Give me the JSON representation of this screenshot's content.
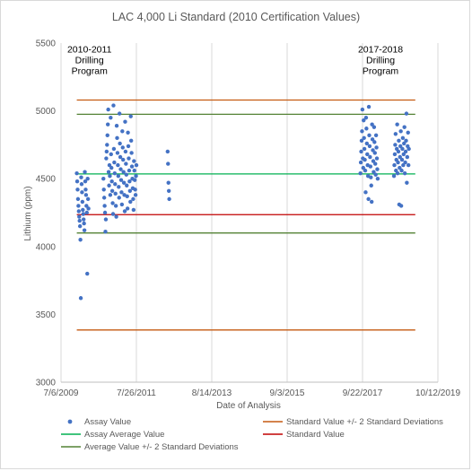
{
  "chart_data": {
    "type": "scatter",
    "title": "LAC 4,000 Li Standard (2010 Certification Values)",
    "xlabel": "Date of Analysis",
    "ylabel": "Lithium (ppm)",
    "ylim": [
      3000,
      5500
    ],
    "yticks": [
      "3000",
      "3500",
      "4000",
      "4500",
      "5000",
      "5500"
    ],
    "xlim": [
      "2009-07-06",
      "2019-10-12"
    ],
    "xticks": [
      "7/6/2009",
      "7/26/2011",
      "8/14/2013",
      "9/3/2015",
      "9/22/2017",
      "10/12/2019"
    ],
    "grid": "vertical",
    "legend_position": "bottom",
    "annotations": [
      {
        "lines": [
          "2010-2011",
          "Drilling",
          "Program"
        ],
        "x": "2010-04-15",
        "y": 5430
      },
      {
        "lines": [
          "2017-2018",
          "Drilling",
          "Program"
        ],
        "x": "2018-03-20",
        "y": 5430
      }
    ],
    "reference_lines": [
      {
        "name": "Standard Value +/- 2 Standard Deviations",
        "color": "#c55a11",
        "y": 5080
      },
      {
        "name": "Average Value +/- 2 Standard Deviations",
        "color": "#548235",
        "y": 4975
      },
      {
        "name": "Assay Average Value",
        "color": "#00b050",
        "y": 4535
      },
      {
        "name": "Standard Value",
        "color": "#c00000",
        "y": 4235
      },
      {
        "name": "Average Value +/- 2 Standard Deviations",
        "color": "#548235",
        "y": 4100
      },
      {
        "name": "Standard Value +/- 2 Standard Deviations",
        "color": "#c55a11",
        "y": 3385
      }
    ],
    "series": [
      {
        "name": "Assay Value",
        "color": "#4472c4",
        "points": [
          [
            "2009-12-10",
            4540
          ],
          [
            "2009-12-14",
            4480
          ],
          [
            "2009-12-18",
            4420
          ],
          [
            "2009-12-22",
            4350
          ],
          [
            "2009-12-26",
            4300
          ],
          [
            "2009-12-30",
            4260
          ],
          [
            "2010-01-03",
            4220
          ],
          [
            "2010-01-07",
            4190
          ],
          [
            "2010-01-11",
            4150
          ],
          [
            "2010-01-15",
            4050
          ],
          [
            "2010-01-19",
            3620
          ],
          [
            "2010-01-23",
            4510
          ],
          [
            "2010-01-27",
            4460
          ],
          [
            "2010-01-31",
            4400
          ],
          [
            "2010-02-04",
            4330
          ],
          [
            "2010-02-08",
            4270
          ],
          [
            "2010-02-12",
            4240
          ],
          [
            "2010-02-16",
            4200
          ],
          [
            "2010-02-20",
            4170
          ],
          [
            "2010-02-24",
            4120
          ],
          [
            "2010-02-28",
            4550
          ],
          [
            "2010-03-04",
            4480
          ],
          [
            "2010-03-08",
            4420
          ],
          [
            "2010-03-12",
            4380
          ],
          [
            "2010-03-16",
            4300
          ],
          [
            "2010-03-20",
            4250
          ],
          [
            "2010-03-24",
            3800
          ],
          [
            "2010-03-28",
            4500
          ],
          [
            "2010-04-01",
            4350
          ],
          [
            "2010-04-05",
            4280
          ],
          [
            "2010-09-01",
            4500
          ],
          [
            "2010-09-05",
            4420
          ],
          [
            "2010-09-09",
            4360
          ],
          [
            "2010-09-13",
            4300
          ],
          [
            "2010-09-17",
            4250
          ],
          [
            "2010-09-21",
            4110
          ],
          [
            "2010-09-25",
            4200
          ],
          [
            "2010-09-29",
            4650
          ],
          [
            "2010-10-03",
            4700
          ],
          [
            "2010-10-07",
            4750
          ],
          [
            "2010-10-11",
            4820
          ],
          [
            "2010-10-15",
            4900
          ],
          [
            "2010-10-19",
            5010
          ],
          [
            "2010-10-23",
            4550
          ],
          [
            "2010-10-27",
            4450
          ],
          [
            "2010-10-31",
            4600
          ],
          [
            "2010-11-04",
            4520
          ],
          [
            "2010-11-08",
            4380
          ],
          [
            "2010-11-12",
            4950
          ],
          [
            "2010-11-16",
            4680
          ],
          [
            "2010-11-20",
            4580
          ],
          [
            "2010-11-24",
            4480
          ],
          [
            "2010-11-28",
            4410
          ],
          [
            "2010-12-02",
            4320
          ],
          [
            "2010-12-06",
            4240
          ],
          [
            "2010-12-10",
            5040
          ],
          [
            "2010-12-14",
            4720
          ],
          [
            "2010-12-18",
            4620
          ],
          [
            "2010-12-22",
            4540
          ],
          [
            "2010-12-26",
            4460
          ],
          [
            "2010-12-30",
            4390
          ],
          [
            "2011-01-03",
            4300
          ],
          [
            "2011-01-07",
            4220
          ],
          [
            "2011-01-11",
            4890
          ],
          [
            "2011-01-15",
            4800
          ],
          [
            "2011-01-19",
            4690
          ],
          [
            "2011-01-23",
            4600
          ],
          [
            "2011-01-27",
            4520
          ],
          [
            "2011-01-31",
            4440
          ],
          [
            "2011-02-04",
            4360
          ],
          [
            "2011-02-08",
            4980
          ],
          [
            "2011-02-12",
            4760
          ],
          [
            "2011-02-16",
            4660
          ],
          [
            "2011-02-20",
            4570
          ],
          [
            "2011-02-24",
            4490
          ],
          [
            "2011-02-28",
            4400
          ],
          [
            "2011-03-04",
            4310
          ],
          [
            "2011-03-08",
            4850
          ],
          [
            "2011-03-12",
            4730
          ],
          [
            "2011-03-16",
            4640
          ],
          [
            "2011-03-20",
            4550
          ],
          [
            "2011-03-24",
            4470
          ],
          [
            "2011-03-28",
            4380
          ],
          [
            "2011-04-01",
            4260
          ],
          [
            "2011-04-05",
            4920
          ],
          [
            "2011-04-09",
            4700
          ],
          [
            "2011-04-13",
            4610
          ],
          [
            "2011-04-17",
            4530
          ],
          [
            "2011-04-21",
            4450
          ],
          [
            "2011-04-25",
            4370
          ],
          [
            "2011-04-29",
            4280
          ],
          [
            "2011-05-03",
            4840
          ],
          [
            "2011-05-07",
            4740
          ],
          [
            "2011-05-11",
            4650
          ],
          [
            "2011-05-15",
            4560
          ],
          [
            "2011-05-19",
            4480
          ],
          [
            "2011-05-23",
            4410
          ],
          [
            "2011-05-27",
            4330
          ],
          [
            "2011-05-31",
            4960
          ],
          [
            "2011-06-04",
            4780
          ],
          [
            "2011-06-08",
            4690
          ],
          [
            "2011-06-12",
            4590
          ],
          [
            "2011-06-16",
            4500
          ],
          [
            "2011-06-20",
            4430
          ],
          [
            "2011-06-24",
            4350
          ],
          [
            "2011-06-28",
            4270
          ],
          [
            "2011-07-02",
            4630
          ],
          [
            "2011-07-06",
            4560
          ],
          [
            "2011-07-10",
            4490
          ],
          [
            "2011-07-14",
            4420
          ],
          [
            "2011-07-18",
            4380
          ],
          [
            "2011-07-22",
            4520
          ],
          [
            "2011-07-26",
            4600
          ],
          [
            "2012-06-01",
            4700
          ],
          [
            "2012-06-05",
            4610
          ],
          [
            "2012-06-09",
            4470
          ],
          [
            "2012-06-13",
            4410
          ],
          [
            "2012-06-17",
            4350
          ],
          [
            "2017-09-01",
            4540
          ],
          [
            "2017-09-05",
            4620
          ],
          [
            "2017-09-09",
            4700
          ],
          [
            "2017-09-13",
            4780
          ],
          [
            "2017-09-17",
            4850
          ],
          [
            "2017-09-21",
            5010
          ],
          [
            "2017-09-25",
            4650
          ],
          [
            "2017-09-29",
            4580
          ],
          [
            "2017-10-03",
            4930
          ],
          [
            "2017-10-07",
            4800
          ],
          [
            "2017-10-11",
            4720
          ],
          [
            "2017-10-15",
            4640
          ],
          [
            "2017-10-19",
            4560
          ],
          [
            "2017-10-23",
            4400
          ],
          [
            "2017-10-27",
            4950
          ],
          [
            "2017-10-31",
            4870
          ],
          [
            "2017-11-04",
            4760
          ],
          [
            "2017-11-08",
            4680
          ],
          [
            "2017-11-12",
            4600
          ],
          [
            "2017-11-16",
            4520
          ],
          [
            "2017-11-20",
            4350
          ],
          [
            "2017-11-24",
            5030
          ],
          [
            "2017-11-28",
            4820
          ],
          [
            "2017-12-02",
            4740
          ],
          [
            "2017-12-06",
            4660
          ],
          [
            "2017-12-10",
            4590
          ],
          [
            "2017-12-14",
            4510
          ],
          [
            "2017-12-18",
            4450
          ],
          [
            "2017-12-22",
            4330
          ],
          [
            "2017-12-26",
            4900
          ],
          [
            "2017-12-30",
            4790
          ],
          [
            "2018-01-03",
            4710
          ],
          [
            "2018-01-07",
            4630
          ],
          [
            "2018-01-11",
            4550
          ],
          [
            "2018-01-15",
            4880
          ],
          [
            "2018-01-19",
            4770
          ],
          [
            "2018-01-23",
            4690
          ],
          [
            "2018-01-27",
            4610
          ],
          [
            "2018-01-31",
            4530
          ],
          [
            "2018-02-04",
            4820
          ],
          [
            "2018-02-08",
            4730
          ],
          [
            "2018-02-12",
            4650
          ],
          [
            "2018-02-16",
            4570
          ],
          [
            "2018-02-20",
            4500
          ],
          [
            "2018-08-01",
            4520
          ],
          [
            "2018-08-05",
            4600
          ],
          [
            "2018-08-09",
            4680
          ],
          [
            "2018-08-13",
            4750
          ],
          [
            "2018-08-17",
            4830
          ],
          [
            "2018-08-21",
            4560
          ],
          [
            "2018-08-25",
            4640
          ],
          [
            "2018-08-29",
            4720
          ],
          [
            "2018-09-02",
            4900
          ],
          [
            "2018-09-06",
            4540
          ],
          [
            "2018-09-10",
            4620
          ],
          [
            "2018-09-14",
            4700
          ],
          [
            "2018-09-18",
            4780
          ],
          [
            "2018-09-22",
            4310
          ],
          [
            "2018-09-26",
            4580
          ],
          [
            "2018-09-30",
            4660
          ],
          [
            "2018-10-04",
            4740
          ],
          [
            "2018-10-08",
            4850
          ],
          [
            "2018-10-12",
            4300
          ],
          [
            "2018-10-16",
            4560
          ],
          [
            "2018-10-20",
            4640
          ],
          [
            "2018-10-24",
            4720
          ],
          [
            "2018-10-28",
            4800
          ],
          [
            "2018-11-01",
            4600
          ],
          [
            "2018-11-05",
            4680
          ],
          [
            "2018-11-09",
            4760
          ],
          [
            "2018-11-13",
            4880
          ],
          [
            "2018-11-17",
            4540
          ],
          [
            "2018-11-21",
            4620
          ],
          [
            "2018-11-25",
            4700
          ],
          [
            "2018-11-29",
            4780
          ],
          [
            "2018-12-03",
            4980
          ],
          [
            "2018-12-07",
            4470
          ],
          [
            "2018-12-11",
            4660
          ],
          [
            "2018-12-15",
            4740
          ],
          [
            "2018-12-19",
            4840
          ],
          [
            "2018-12-23",
            4600
          ],
          [
            "2018-12-27",
            4720
          ]
        ]
      }
    ],
    "legend": [
      {
        "label": "Assay Value",
        "color": "#4472c4",
        "kind": "marker"
      },
      {
        "label": "Standard Value +/- 2 Standard Deviations",
        "color": "#c55a11",
        "kind": "line"
      },
      {
        "label": "Assay Average Value",
        "color": "#00b050",
        "kind": "line"
      },
      {
        "label": "Standard Value",
        "color": "#c00000",
        "kind": "line"
      },
      {
        "label": "Average Value +/- 2 Standard Deviations",
        "color": "#548235",
        "kind": "line"
      }
    ]
  }
}
